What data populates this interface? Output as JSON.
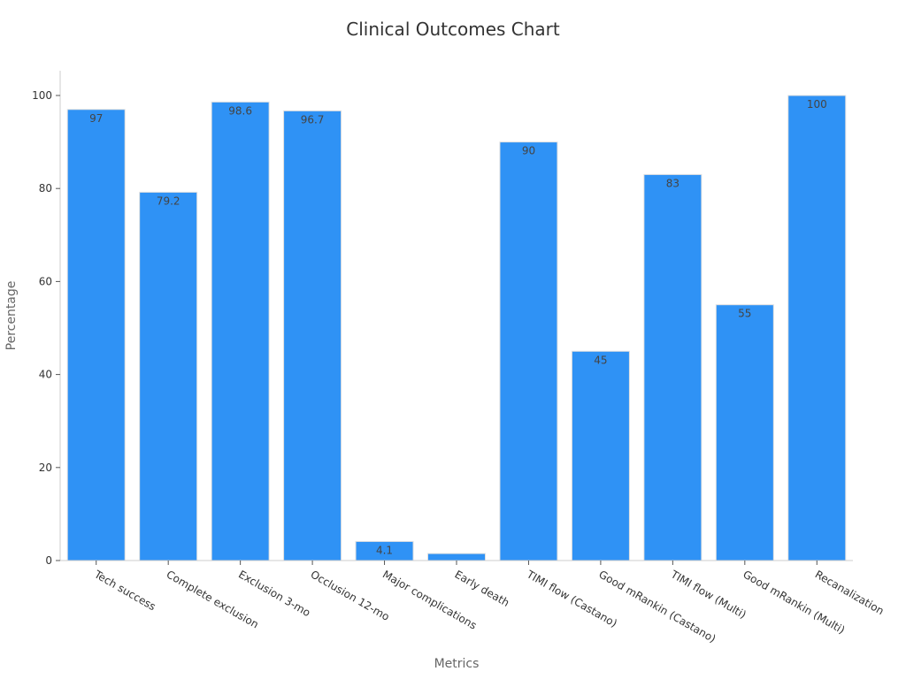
{
  "chart_data": {
    "type": "bar",
    "title": "Clinical Outcomes Chart",
    "xlabel": "Metrics",
    "ylabel": "Percentage",
    "categories": [
      "Tech success",
      "Complete exclusion",
      "Exclusion 3-mo",
      "Occlusion 12-mo",
      "Major complications",
      "Early death",
      "TIMI flow (Castano)",
      "Good mRankin (Castano)",
      "TIMI flow (Multi)",
      "Good mRankin (Multi)",
      "Recanalization"
    ],
    "values": [
      97,
      79.2,
      98.6,
      96.7,
      4.1,
      1.5,
      90,
      45,
      83,
      55,
      100
    ],
    "data_labels": [
      "97",
      "79.2",
      "98.6",
      "96.7",
      "4.1",
      "",
      "90",
      "45",
      "83",
      "55",
      "100"
    ],
    "yticks": [
      "0",
      "20",
      "40",
      "60",
      "80",
      "100"
    ],
    "ylim": [
      0,
      105
    ],
    "grid": false,
    "legend": "none",
    "colors": {
      "bar": "#2f92f5",
      "bar_edge": "#e0e0e0",
      "axis": "#cccccc"
    }
  }
}
